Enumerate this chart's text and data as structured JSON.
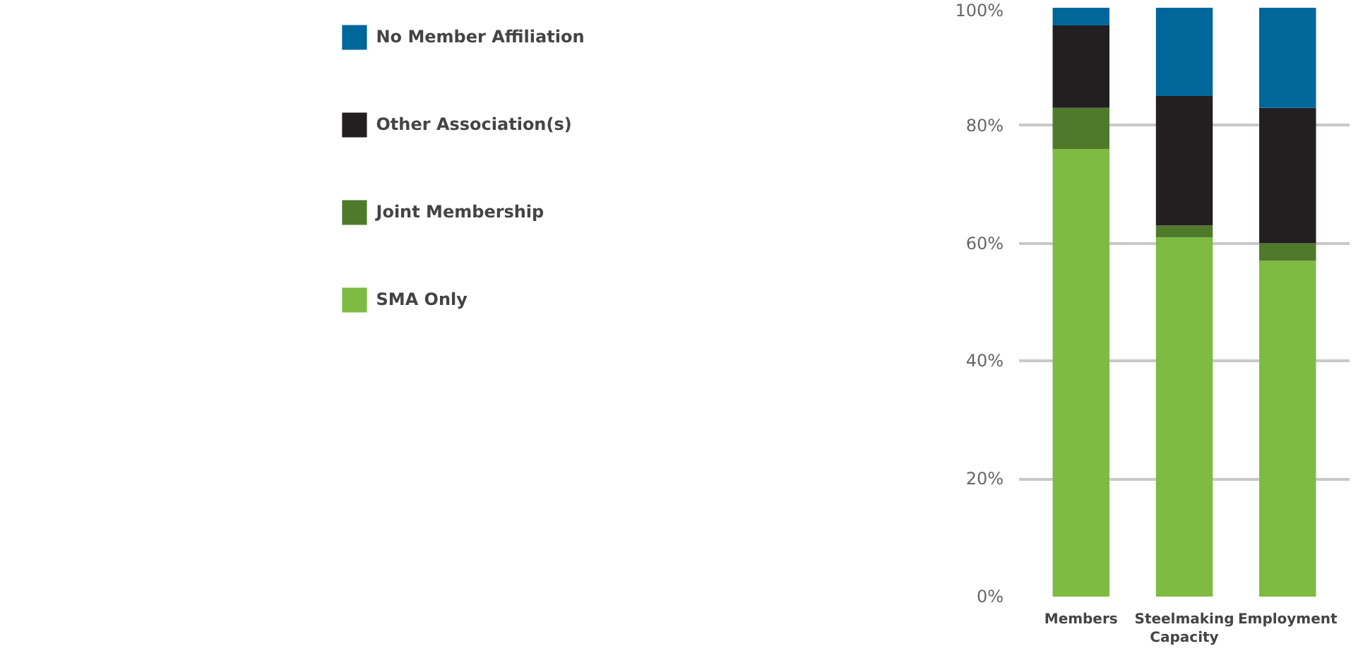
{
  "chart_data": {
    "type": "bar",
    "stacked": true,
    "categories": [
      "Members",
      "Steelmaking\nCapacity",
      "Employment"
    ],
    "series": [
      {
        "name": "SMA Only",
        "color": "#7dbb42",
        "values": [
          76,
          61,
          57
        ]
      },
      {
        "name": "Joint Membership",
        "color": "#4e7a2a",
        "values": [
          7,
          2,
          3
        ]
      },
      {
        "name": "Other Association(s)",
        "color": "#231f20",
        "values": [
          14,
          22,
          23
        ]
      },
      {
        "name": "No Member Affiliation",
        "color": "#00679a",
        "values": [
          3,
          15,
          17
        ]
      }
    ],
    "ylim": [
      0,
      100
    ],
    "yticks": [
      {
        "value": 0,
        "label": "0%"
      },
      {
        "value": 20,
        "label": "20%"
      },
      {
        "value": 40,
        "label": "40%"
      },
      {
        "value": 60,
        "label": "60%"
      },
      {
        "value": 80,
        "label": "80%"
      },
      {
        "value": 100,
        "label": "100%"
      }
    ],
    "grid": "y",
    "legend": "left"
  }
}
